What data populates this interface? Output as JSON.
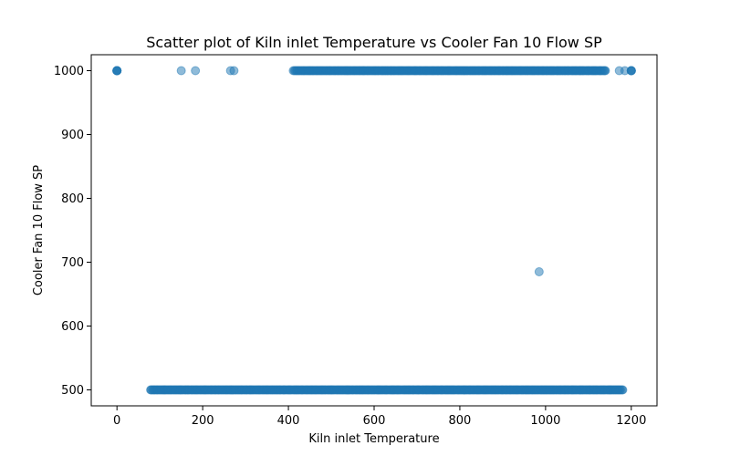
{
  "chart_data": {
    "type": "scatter",
    "title": "Scatter plot of Kiln inlet Temperature vs Cooler Fan 10 Flow SP",
    "xlabel": "Kiln inlet Temperature",
    "ylabel": "Cooler Fan 10 Flow SP",
    "xlim": [
      -60,
      1260
    ],
    "ylim": [
      475,
      1025
    ],
    "xticks": [
      0,
      200,
      400,
      600,
      800,
      1000,
      1200
    ],
    "yticks": [
      500,
      600,
      700,
      800,
      900,
      1000
    ],
    "grid": false,
    "legend": "none",
    "marker_color": "#1f77b4",
    "marker_alpha": 0.5,
    "series": [
      {
        "points": [
          [
            0,
            1000
          ],
          [
            0,
            1000
          ],
          [
            0,
            1000
          ],
          [
            0,
            1000
          ],
          [
            0,
            1000
          ],
          [
            150,
            1000
          ],
          [
            183,
            1000
          ],
          [
            265,
            1000
          ],
          [
            273,
            1000
          ],
          [
            1172,
            1000
          ],
          [
            1185,
            1000
          ],
          [
            1200,
            1000
          ],
          [
            1200,
            1000
          ],
          [
            1200,
            1000
          ],
          [
            1200,
            1000
          ],
          [
            985,
            685
          ]
        ],
        "segments": [
          {
            "y": 1000,
            "x_min": 412,
            "x_max": 1140
          },
          {
            "y": 500,
            "x_min": 78,
            "x_max": 1180
          }
        ]
      }
    ]
  }
}
